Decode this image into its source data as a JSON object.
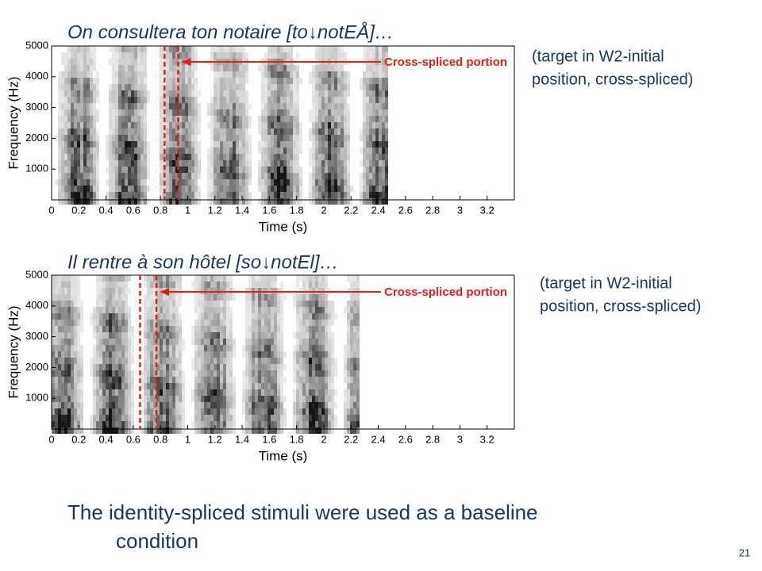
{
  "slide": {
    "panels": [
      {
        "title": "On consultera ton notaire [to↓notEÅ]…",
        "annotation": [
          "(target in W2-initial",
          "position, cross-spliced)"
        ],
        "arrow_label": "Cross-spliced portion",
        "y_label": "Frequency (Hz)",
        "x_label": "Time (s)",
        "xlim": [
          0,
          3.4
        ],
        "xticks": [
          0,
          0.2,
          0.4,
          0.6,
          0.8,
          1,
          1.2,
          1.4,
          1.6,
          1.8,
          2,
          2.2,
          2.4,
          2.6,
          2.8,
          3,
          3.2
        ],
        "ylim": [
          0,
          5000
        ],
        "yticks": [
          1000,
          2000,
          3000,
          4000,
          5000
        ],
        "splice_lines": [
          0.83,
          0.93
        ]
      },
      {
        "title": "Il rentre à son hôtel [so↓notEl]…",
        "annotation": [
          "(target in W2-initial",
          "position, cross-spliced)"
        ],
        "arrow_label": "Cross-spliced portion",
        "y_label": "Frequency (Hz)",
        "x_label": "Time (s)",
        "xlim": [
          0,
          3.4
        ],
        "xticks": [
          0,
          0.2,
          0.4,
          0.6,
          0.8,
          1,
          1.2,
          1.4,
          1.6,
          1.8,
          2,
          2.2,
          2.4,
          2.6,
          2.8,
          3,
          3.2
        ],
        "ylim": [
          0,
          5000
        ],
        "yticks": [
          1000,
          2000,
          3000,
          4000,
          5000
        ],
        "splice_lines": [
          0.65,
          0.77
        ]
      }
    ],
    "body": [
      "The identity-spliced stimuli were used as a baseline",
      "condition"
    ],
    "page_number": 21
  }
}
